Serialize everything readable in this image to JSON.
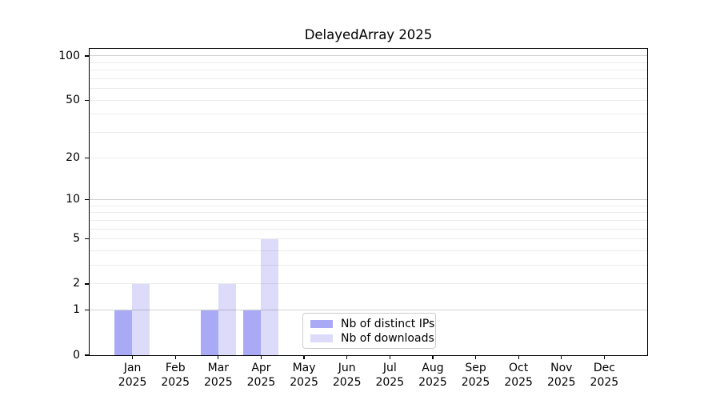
{
  "figure": {
    "title": "DelayedArray 2025"
  },
  "legend": {
    "items": [
      {
        "label": "Nb of distinct IPs",
        "color": "#a9a9f6"
      },
      {
        "label": "Nb of downloads",
        "color": "#dcdcfa"
      }
    ]
  },
  "axes": {
    "y_tick_labels": [
      "0",
      "1",
      "2",
      "5",
      "10",
      "20",
      "50",
      "100"
    ],
    "x_months": [
      "Jan",
      "Feb",
      "Mar",
      "Apr",
      "May",
      "Jun",
      "Jul",
      "Aug",
      "Sep",
      "Oct",
      "Nov",
      "Dec"
    ],
    "x_year": "2025"
  },
  "chart_data": {
    "type": "bar",
    "title": "DelayedArray 2025",
    "categories": [
      "Jan 2025",
      "Feb 2025",
      "Mar 2025",
      "Apr 2025",
      "May 2025",
      "Jun 2025",
      "Jul 2025",
      "Aug 2025",
      "Sep 2025",
      "Oct 2025",
      "Nov 2025",
      "Dec 2025"
    ],
    "series": [
      {
        "name": "Nb of distinct IPs",
        "color": "#a9a9f6",
        "values": [
          1,
          0,
          1,
          1,
          0,
          0,
          0,
          0,
          0,
          0,
          0,
          0
        ]
      },
      {
        "name": "Nb of downloads",
        "color": "#dcdcfa",
        "values": [
          2,
          0,
          2,
          5,
          0,
          0,
          0,
          0,
          0,
          0,
          0,
          0
        ]
      }
    ],
    "xlabel": "",
    "ylabel": "",
    "y_ticks": [
      0,
      1,
      2,
      5,
      10,
      20,
      50,
      100
    ],
    "ylim": [
      0,
      112
    ],
    "yscale": "log10(1+y)",
    "grid": "horizontal major+minor log lines, drawn over bars",
    "legend_position": "lower center"
  }
}
